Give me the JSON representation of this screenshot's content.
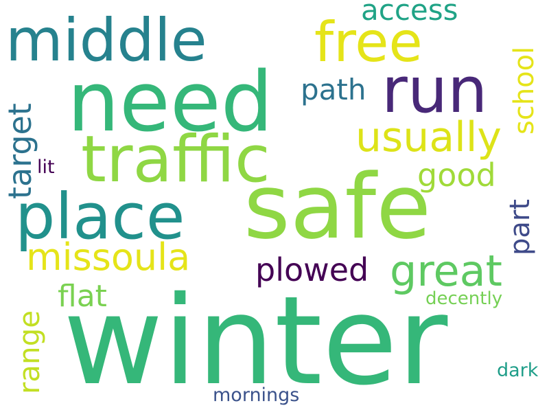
{
  "words": {
    "winter": {
      "text": "winter",
      "color": "#35b779"
    },
    "safe": {
      "text": "safe",
      "color": "#8fd744"
    },
    "need": {
      "text": "need",
      "color": "#35b779"
    },
    "traffic": {
      "text": "traffic",
      "color": "#8fd744"
    },
    "place": {
      "text": "place",
      "color": "#21918c"
    },
    "middle": {
      "text": "middle",
      "color": "#26828e"
    },
    "run": {
      "text": "run",
      "color": "#482878"
    },
    "free": {
      "text": "free",
      "color": "#e5e419"
    },
    "usually": {
      "text": "usually",
      "color": "#dde318"
    },
    "missoula": {
      "text": "missoula",
      "color": "#e5e419"
    },
    "great": {
      "text": "great",
      "color": "#5ec962"
    },
    "plowed": {
      "text": "plowed",
      "color": "#440154"
    },
    "access": {
      "text": "access",
      "color": "#20a386"
    },
    "path": {
      "text": "path",
      "color": "#2c728e"
    },
    "good": {
      "text": "good",
      "color": "#a0da39"
    },
    "flat": {
      "text": "flat",
      "color": "#7ad151"
    },
    "decently": {
      "text": "decently",
      "color": "#75d054"
    },
    "mornings": {
      "text": "mornings",
      "color": "#3b528b"
    },
    "dark": {
      "text": "dark",
      "color": "#1f9e89"
    },
    "lit": {
      "text": "lit",
      "color": "#440154"
    },
    "school": {
      "text": "school",
      "color": "#e5e419"
    },
    "target": {
      "text": "target",
      "color": "#2c728e"
    },
    "range": {
      "text": "range",
      "color": "#c2df23"
    },
    "part": {
      "text": "part",
      "color": "#3e4a89"
    }
  }
}
